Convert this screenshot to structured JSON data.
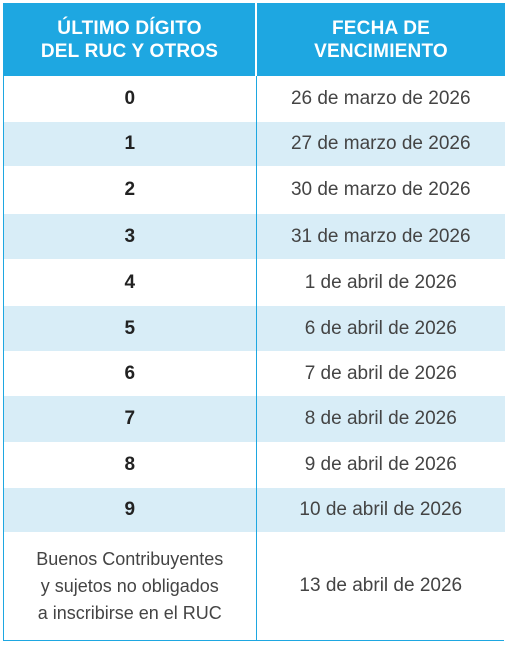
{
  "header": {
    "col1_line1": "ÚLTIMO DÍGITO",
    "col1_line2": "DEL RUC Y OTROS",
    "col2_line1": "FECHA DE",
    "col2_line2": "VENCIMIENTO"
  },
  "rows": [
    {
      "digit": "0",
      "date": "26 de marzo de 2026"
    },
    {
      "digit": "1",
      "date": "27 de marzo de 2026"
    },
    {
      "digit": "2",
      "date": "30 de marzo de 2026"
    },
    {
      "digit": "3",
      "date": "31 de marzo de 2026"
    },
    {
      "digit": "4",
      "date": "1 de abril de 2026"
    },
    {
      "digit": "5",
      "date": "6 de abril de 2026"
    },
    {
      "digit": "6",
      "date": "7 de abril de 2026"
    },
    {
      "digit": "7",
      "date": "8 de abril de 2026"
    },
    {
      "digit": "8",
      "date": "9 de abril de 2026"
    },
    {
      "digit": "9",
      "date": "10 de abril de 2026"
    }
  ],
  "last_row": {
    "line1": "Buenos Contribuyentes",
    "line2": "y sujetos no obligados",
    "line3": "a inscribirse en el RUC",
    "date": "13 de abril de 2026"
  },
  "colors": {
    "header_bg": "#1ea7e1",
    "stripe_bg": "#d8edf7"
  }
}
